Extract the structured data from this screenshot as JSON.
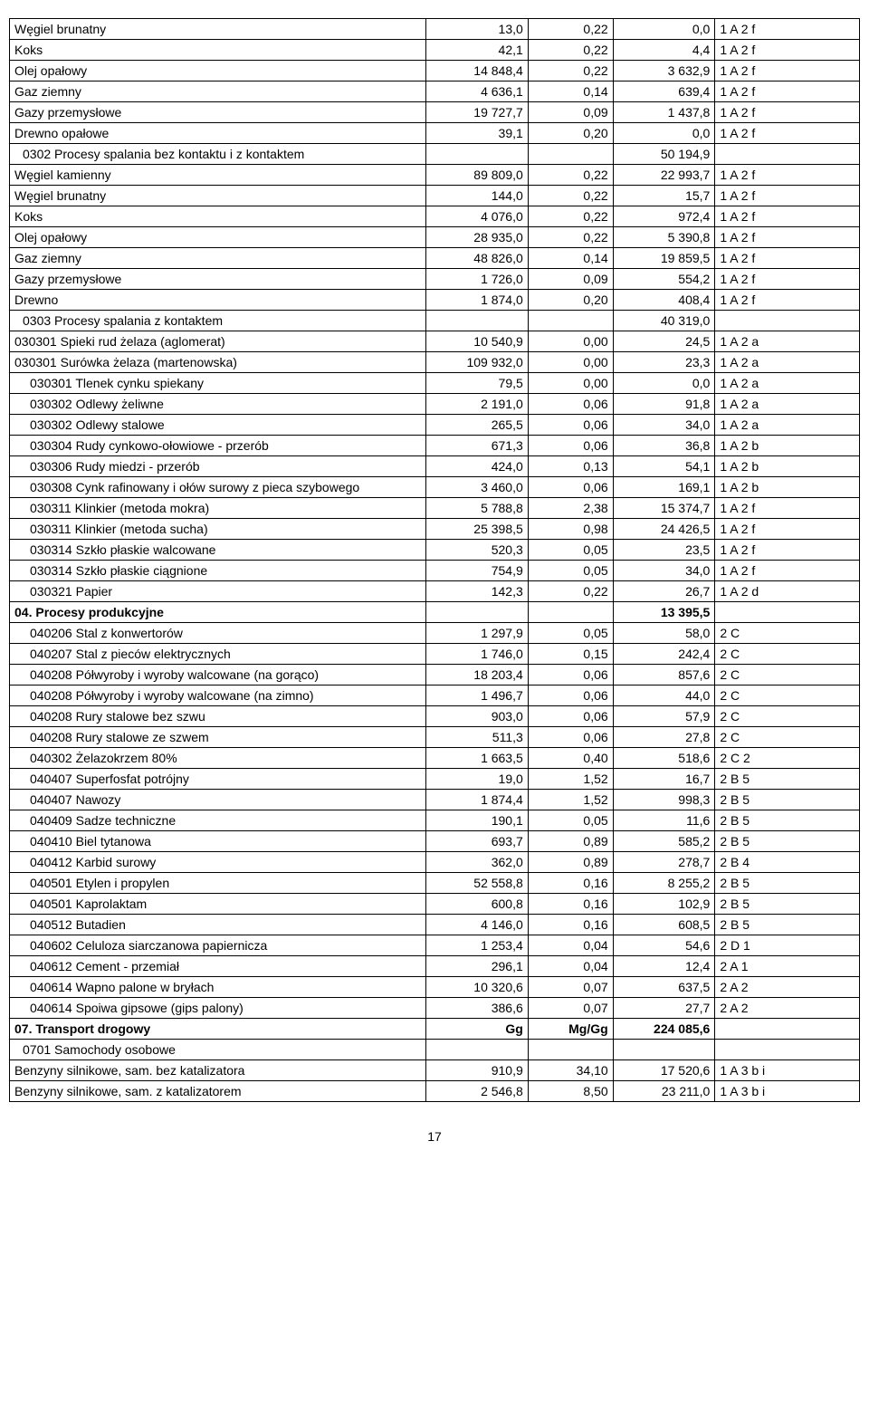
{
  "pageNumber": "17",
  "rows": [
    {
      "label": "Węgiel brunatny",
      "v1": "13,0",
      "v2": "0,22",
      "v3": "0,0",
      "code": "1 A 2 f",
      "indent": 0,
      "bold": false
    },
    {
      "label": "Koks",
      "v1": "42,1",
      "v2": "0,22",
      "v3": "4,4",
      "code": "1 A 2 f",
      "indent": 0,
      "bold": false
    },
    {
      "label": "Olej opałowy",
      "v1": "14 848,4",
      "v2": "0,22",
      "v3": "3 632,9",
      "code": "1 A 2 f",
      "indent": 0,
      "bold": false
    },
    {
      "label": "Gaz ziemny",
      "v1": "4 636,1",
      "v2": "0,14",
      "v3": "639,4",
      "code": "1 A 2 f",
      "indent": 0,
      "bold": false
    },
    {
      "label": "Gazy przemysłowe",
      "v1": "19 727,7",
      "v2": "0,09",
      "v3": "1 437,8",
      "code": "1 A 2 f",
      "indent": 0,
      "bold": false
    },
    {
      "label": "Drewno opałowe",
      "v1": "39,1",
      "v2": "0,20",
      "v3": "0,0",
      "code": "1 A 2 f",
      "indent": 0,
      "bold": false
    },
    {
      "label": "0302  Procesy spalania bez kontaktu i z kontaktem",
      "v1": "",
      "v2": "",
      "v3": "50 194,9",
      "code": "",
      "indent": 1,
      "bold": false
    },
    {
      "label": "Węgiel kamienny",
      "v1": "89 809,0",
      "v2": "0,22",
      "v3": "22 993,7",
      "code": "1 A 2 f",
      "indent": 0,
      "bold": false
    },
    {
      "label": "Węgiel brunatny",
      "v1": "144,0",
      "v2": "0,22",
      "v3": "15,7",
      "code": "1 A 2 f",
      "indent": 0,
      "bold": false
    },
    {
      "label": "Koks",
      "v1": "4 076,0",
      "v2": "0,22",
      "v3": "972,4",
      "code": "1 A 2 f",
      "indent": 0,
      "bold": false
    },
    {
      "label": "Olej opałowy",
      "v1": "28 935,0",
      "v2": "0,22",
      "v3": "5 390,8",
      "code": "1 A 2 f",
      "indent": 0,
      "bold": false
    },
    {
      "label": "Gaz ziemny",
      "v1": "48 826,0",
      "v2": "0,14",
      "v3": "19 859,5",
      "code": "1 A 2 f",
      "indent": 0,
      "bold": false
    },
    {
      "label": "Gazy przemysłowe",
      "v1": "1 726,0",
      "v2": "0,09",
      "v3": "554,2",
      "code": "1 A 2 f",
      "indent": 0,
      "bold": false
    },
    {
      "label": "Drewno",
      "v1": "1 874,0",
      "v2": "0,20",
      "v3": "408,4",
      "code": "1 A 2 f",
      "indent": 0,
      "bold": false
    },
    {
      "label": "0303  Procesy spalania z kontaktem",
      "v1": "",
      "v2": "",
      "v3": "40 319,0",
      "code": "",
      "indent": 1,
      "bold": false
    },
    {
      "label": "030301  Spieki rud żelaza  (aglomerat)",
      "v1": "10 540,9",
      "v2": "0,00",
      "v3": "24,5",
      "code": "1 A 2 a",
      "indent": 0,
      "bold": false
    },
    {
      "label": "030301  Surówka  żelaza (martenowska)",
      "v1": "109 932,0",
      "v2": "0,00",
      "v3": "23,3",
      "code": "1 A 2 a",
      "indent": 0,
      "bold": false
    },
    {
      "label": "030301  Tlenek cynku spiekany",
      "v1": "79,5",
      "v2": "0,00",
      "v3": "0,0",
      "code": "1 A 2 a",
      "indent": 2,
      "bold": false
    },
    {
      "label": "030302  Odlewy żeliwne",
      "v1": "2 191,0",
      "v2": "0,06",
      "v3": "91,8",
      "code": "1 A 2 a",
      "indent": 2,
      "bold": false
    },
    {
      "label": "030302  Odlewy stalowe",
      "v1": "265,5",
      "v2": "0,06",
      "v3": "34,0",
      "code": "1 A 2 a",
      "indent": 2,
      "bold": false
    },
    {
      "label": "030304  Rudy cynkowo-ołowiowe - przerób",
      "v1": "671,3",
      "v2": "0,06",
      "v3": "36,8",
      "code": "1 A 2 b",
      "indent": 2,
      "bold": false
    },
    {
      "label": "030306  Rudy miedzi  - przerób",
      "v1": "424,0",
      "v2": "0,13",
      "v3": "54,1",
      "code": "1 A 2 b",
      "indent": 2,
      "bold": false
    },
    {
      "label": "030308  Cynk rafinowany i ołów surowy  z pieca szybowego",
      "v1": "3 460,0",
      "v2": "0,06",
      "v3": "169,1",
      "code": "1 A 2 b",
      "indent": 2,
      "bold": false
    },
    {
      "label": "030311  Klinkier (metoda mokra)",
      "v1": "5 788,8",
      "v2": "2,38",
      "v3": "15 374,7",
      "code": "1 A 2 f",
      "indent": 2,
      "bold": false
    },
    {
      "label": "030311  Klinkier (metoda sucha)",
      "v1": "25 398,5",
      "v2": "0,98",
      "v3": "24 426,5",
      "code": "1 A 2 f",
      "indent": 2,
      "bold": false
    },
    {
      "label": "030314  Szkło płaskie walcowane",
      "v1": "520,3",
      "v2": "0,05",
      "v3": "23,5",
      "code": "1 A 2 f",
      "indent": 2,
      "bold": false
    },
    {
      "label": "030314  Szkło płaskie ciągnione",
      "v1": "754,9",
      "v2": "0,05",
      "v3": "34,0",
      "code": "1 A 2 f",
      "indent": 2,
      "bold": false
    },
    {
      "label": "030321  Papier",
      "v1": "142,3",
      "v2": "0,22",
      "v3": "26,7",
      "code": "1 A 2 d",
      "indent": 2,
      "bold": false
    },
    {
      "label": "04. Procesy produkcyjne",
      "v1": "",
      "v2": "",
      "v3": "13 395,5",
      "code": "",
      "indent": 0,
      "bold": true
    },
    {
      "label": "040206  Stal z konwertorów",
      "v1": "1 297,9",
      "v2": "0,05",
      "v3": "58,0",
      "code": "2 C",
      "indent": 2,
      "bold": false
    },
    {
      "label": "040207  Stal z pieców elektrycznych",
      "v1": "1 746,0",
      "v2": "0,15",
      "v3": "242,4",
      "code": "2 C",
      "indent": 2,
      "bold": false
    },
    {
      "label": "040208  Półwyroby i wyroby walcowane (na gorąco)",
      "v1": "18 203,4",
      "v2": "0,06",
      "v3": "857,6",
      "code": "2 C",
      "indent": 2,
      "bold": false
    },
    {
      "label": "040208  Półwyroby i wyroby walcowane (na zimno)",
      "v1": "1 496,7",
      "v2": "0,06",
      "v3": "44,0",
      "code": "2 C",
      "indent": 2,
      "bold": false
    },
    {
      "label": "040208  Rury stalowe bez szwu",
      "v1": "903,0",
      "v2": "0,06",
      "v3": "57,9",
      "code": "2 C",
      "indent": 2,
      "bold": false
    },
    {
      "label": "040208  Rury stalowe ze szwem",
      "v1": "511,3",
      "v2": "0,06",
      "v3": "27,8",
      "code": "2 C",
      "indent": 2,
      "bold": false
    },
    {
      "label": "040302  Żelazokrzem 80%",
      "v1": "1 663,5",
      "v2": "0,40",
      "v3": "518,6",
      "code": "2 C 2",
      "indent": 2,
      "bold": false
    },
    {
      "label": "040407  Superfosfat potrójny",
      "v1": "19,0",
      "v2": "1,52",
      "v3": "16,7",
      "code": "2 B 5",
      "indent": 2,
      "bold": false
    },
    {
      "label": "040407  Nawozy",
      "v1": "1 874,4",
      "v2": "1,52",
      "v3": "998,3",
      "code": "2 B 5",
      "indent": 2,
      "bold": false
    },
    {
      "label": "040409  Sadze techniczne",
      "v1": "190,1",
      "v2": "0,05",
      "v3": "11,6",
      "code": "2 B 5",
      "indent": 2,
      "bold": false
    },
    {
      "label": "040410  Biel tytanowa",
      "v1": "693,7",
      "v2": "0,89",
      "v3": "585,2",
      "code": "2 B 5",
      "indent": 2,
      "bold": false
    },
    {
      "label": "040412  Karbid surowy",
      "v1": "362,0",
      "v2": "0,89",
      "v3": "278,7",
      "code": "2 B 4",
      "indent": 2,
      "bold": false
    },
    {
      "label": "040501  Etylen i propylen",
      "v1": "52 558,8",
      "v2": "0,16",
      "v3": "8 255,2",
      "code": "2 B 5",
      "indent": 2,
      "bold": false
    },
    {
      "label": "040501  Kaprolaktam",
      "v1": "600,8",
      "v2": "0,16",
      "v3": "102,9",
      "code": "2 B 5",
      "indent": 2,
      "bold": false
    },
    {
      "label": "040512  Butadien",
      "v1": "4 146,0",
      "v2": "0,16",
      "v3": "608,5",
      "code": "2 B 5",
      "indent": 2,
      "bold": false
    },
    {
      "label": "040602  Celuloza siarczanowa papiernicza",
      "v1": "1 253,4",
      "v2": "0,04",
      "v3": "54,6",
      "code": "2 D 1",
      "indent": 2,
      "bold": false
    },
    {
      "label": "040612  Cement - przemiał",
      "v1": "296,1",
      "v2": "0,04",
      "v3": "12,4",
      "code": "2 A 1",
      "indent": 2,
      "bold": false
    },
    {
      "label": "040614  Wapno palone w bryłach",
      "v1": "10 320,6",
      "v2": "0,07",
      "v3": "637,5",
      "code": "2 A 2",
      "indent": 2,
      "bold": false
    },
    {
      "label": "040614  Spoiwa gipsowe (gips palony)",
      "v1": "386,6",
      "v2": "0,07",
      "v3": "27,7",
      "code": "2 A 2",
      "indent": 2,
      "bold": false
    },
    {
      "label": "07. Transport drogowy",
      "v1": "Gg",
      "v2": "Mg/Gg",
      "v3": "224 085,6",
      "code": "",
      "indent": 0,
      "bold": true
    },
    {
      "label": "0701 Samochody osobowe",
      "v1": "",
      "v2": "",
      "v3": "",
      "code": "",
      "indent": 1,
      "bold": false
    },
    {
      "label": "Benzyny silnikowe, sam. bez katalizatora",
      "v1": "910,9",
      "v2": "34,10",
      "v3": "17 520,6",
      "code": "1 A 3 b i",
      "indent": 0,
      "bold": false
    },
    {
      "label": "Benzyny silnikowe, sam. z katalizatorem",
      "v1": "2 546,8",
      "v2": "8,50",
      "v3": "23 211,0",
      "code": "1 A 3 b i",
      "indent": 0,
      "bold": false
    }
  ]
}
